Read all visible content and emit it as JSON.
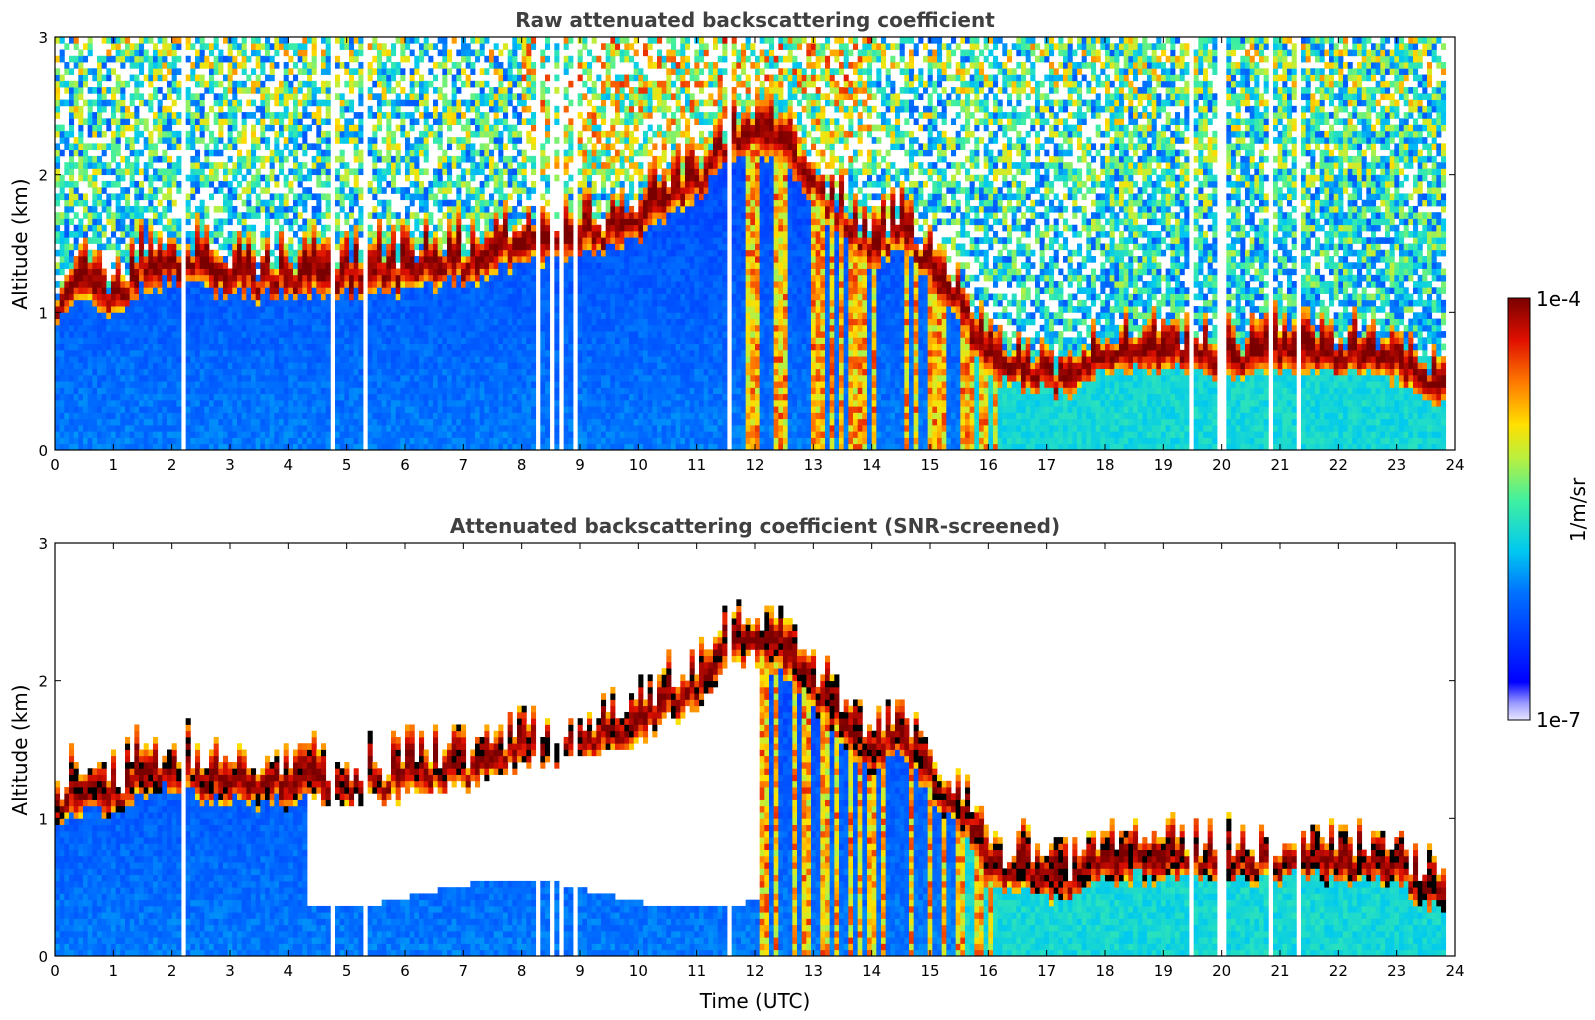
{
  "chart_data": [
    {
      "type": "heatmap",
      "title": "Raw attenuated backscattering coefficient",
      "xlabel": "",
      "ylabel": "Altitude (km)",
      "xlim": [
        0,
        24
      ],
      "ylim": [
        0,
        3
      ],
      "xticks": [
        "0",
        "1",
        "2",
        "3",
        "4",
        "5",
        "6",
        "7",
        "8",
        "9",
        "10",
        "11",
        "12",
        "13",
        "14",
        "15",
        "16",
        "17",
        "18",
        "19",
        "20",
        "21",
        "22",
        "23",
        "24"
      ],
      "yticks": [
        "0",
        "1",
        "2",
        "3"
      ],
      "screened": false,
      "cloud_base_km": [
        [
          0.0,
          1.0
        ],
        [
          0.5,
          1.1
        ],
        [
          1.0,
          1.05
        ],
        [
          1.5,
          1.2
        ],
        [
          2.0,
          1.25
        ],
        [
          3.0,
          1.15
        ],
        [
          4.0,
          1.15
        ],
        [
          5.0,
          1.15
        ],
        [
          6.0,
          1.2
        ],
        [
          7.0,
          1.25
        ],
        [
          8.0,
          1.4
        ],
        [
          9.0,
          1.45
        ],
        [
          10.0,
          1.55
        ],
        [
          10.5,
          1.75
        ],
        [
          11.0,
          1.85
        ],
        [
          11.5,
          2.1
        ],
        [
          12.0,
          2.2
        ],
        [
          12.5,
          2.1
        ],
        [
          13.0,
          1.85
        ],
        [
          14.0,
          1.35
        ],
        [
          14.5,
          1.5
        ],
        [
          15.0,
          1.2
        ],
        [
          15.5,
          0.95
        ],
        [
          16.0,
          0.55
        ],
        [
          17.0,
          0.45
        ],
        [
          17.5,
          0.45
        ],
        [
          18.0,
          0.6
        ],
        [
          19.0,
          0.6
        ],
        [
          19.5,
          0.6
        ],
        [
          20.0,
          0.55
        ],
        [
          21.0,
          0.6
        ],
        [
          22.0,
          0.6
        ],
        [
          23.0,
          0.55
        ],
        [
          23.5,
          0.4
        ],
        [
          23.8,
          0.35
        ]
      ],
      "missing_time_utc": [
        2.2,
        4.75,
        5.3,
        8.25,
        8.55,
        8.65,
        8.95,
        11.55,
        19.5,
        19.95,
        20.05,
        20.85,
        21.3
      ]
    },
    {
      "type": "heatmap",
      "title": "Attenuated backscattering coefficient (SNR-screened)",
      "xlabel": "Time (UTC)",
      "ylabel": "Altitude (km)",
      "xlim": [
        0,
        24
      ],
      "ylim": [
        0,
        3
      ],
      "xticks": [
        "0",
        "1",
        "2",
        "3",
        "4",
        "5",
        "6",
        "7",
        "8",
        "9",
        "10",
        "11",
        "12",
        "13",
        "14",
        "15",
        "16",
        "17",
        "18",
        "19",
        "20",
        "21",
        "22",
        "23",
        "24"
      ],
      "yticks": [
        "0",
        "1",
        "2",
        "3"
      ],
      "screened": true,
      "cloud_base_km": [
        [
          0.0,
          1.0
        ],
        [
          0.5,
          1.1
        ],
        [
          1.0,
          1.05
        ],
        [
          1.5,
          1.2
        ],
        [
          2.0,
          1.25
        ],
        [
          3.0,
          1.15
        ],
        [
          4.0,
          1.15
        ],
        [
          5.0,
          1.15
        ],
        [
          6.0,
          1.2
        ],
        [
          7.0,
          1.25
        ],
        [
          8.0,
          1.4
        ],
        [
          9.0,
          1.45
        ],
        [
          10.0,
          1.55
        ],
        [
          10.5,
          1.75
        ],
        [
          11.0,
          1.85
        ],
        [
          11.5,
          2.1
        ],
        [
          12.0,
          2.2
        ],
        [
          12.5,
          2.1
        ],
        [
          13.0,
          1.85
        ],
        [
          14.0,
          1.35
        ],
        [
          14.5,
          1.5
        ],
        [
          15.0,
          1.2
        ],
        [
          15.5,
          0.95
        ],
        [
          16.0,
          0.55
        ],
        [
          17.0,
          0.45
        ],
        [
          17.5,
          0.45
        ],
        [
          18.0,
          0.6
        ],
        [
          19.0,
          0.6
        ],
        [
          19.5,
          0.6
        ],
        [
          20.0,
          0.55
        ],
        [
          21.0,
          0.6
        ],
        [
          22.0,
          0.6
        ],
        [
          23.0,
          0.55
        ],
        [
          23.5,
          0.4
        ],
        [
          23.8,
          0.35
        ]
      ],
      "missing_time_utc": [
        2.2,
        4.75,
        5.3,
        8.25,
        8.55,
        8.65,
        8.95,
        11.55,
        19.5,
        19.95,
        20.05,
        20.85,
        21.3
      ]
    }
  ],
  "colorbar": {
    "label": "1/m/sr",
    "max_label": "1e-4",
    "min_label": "1e-7",
    "colormap": "jet"
  },
  "colors": {
    "title": "#404040",
    "background": "#ffffff"
  }
}
